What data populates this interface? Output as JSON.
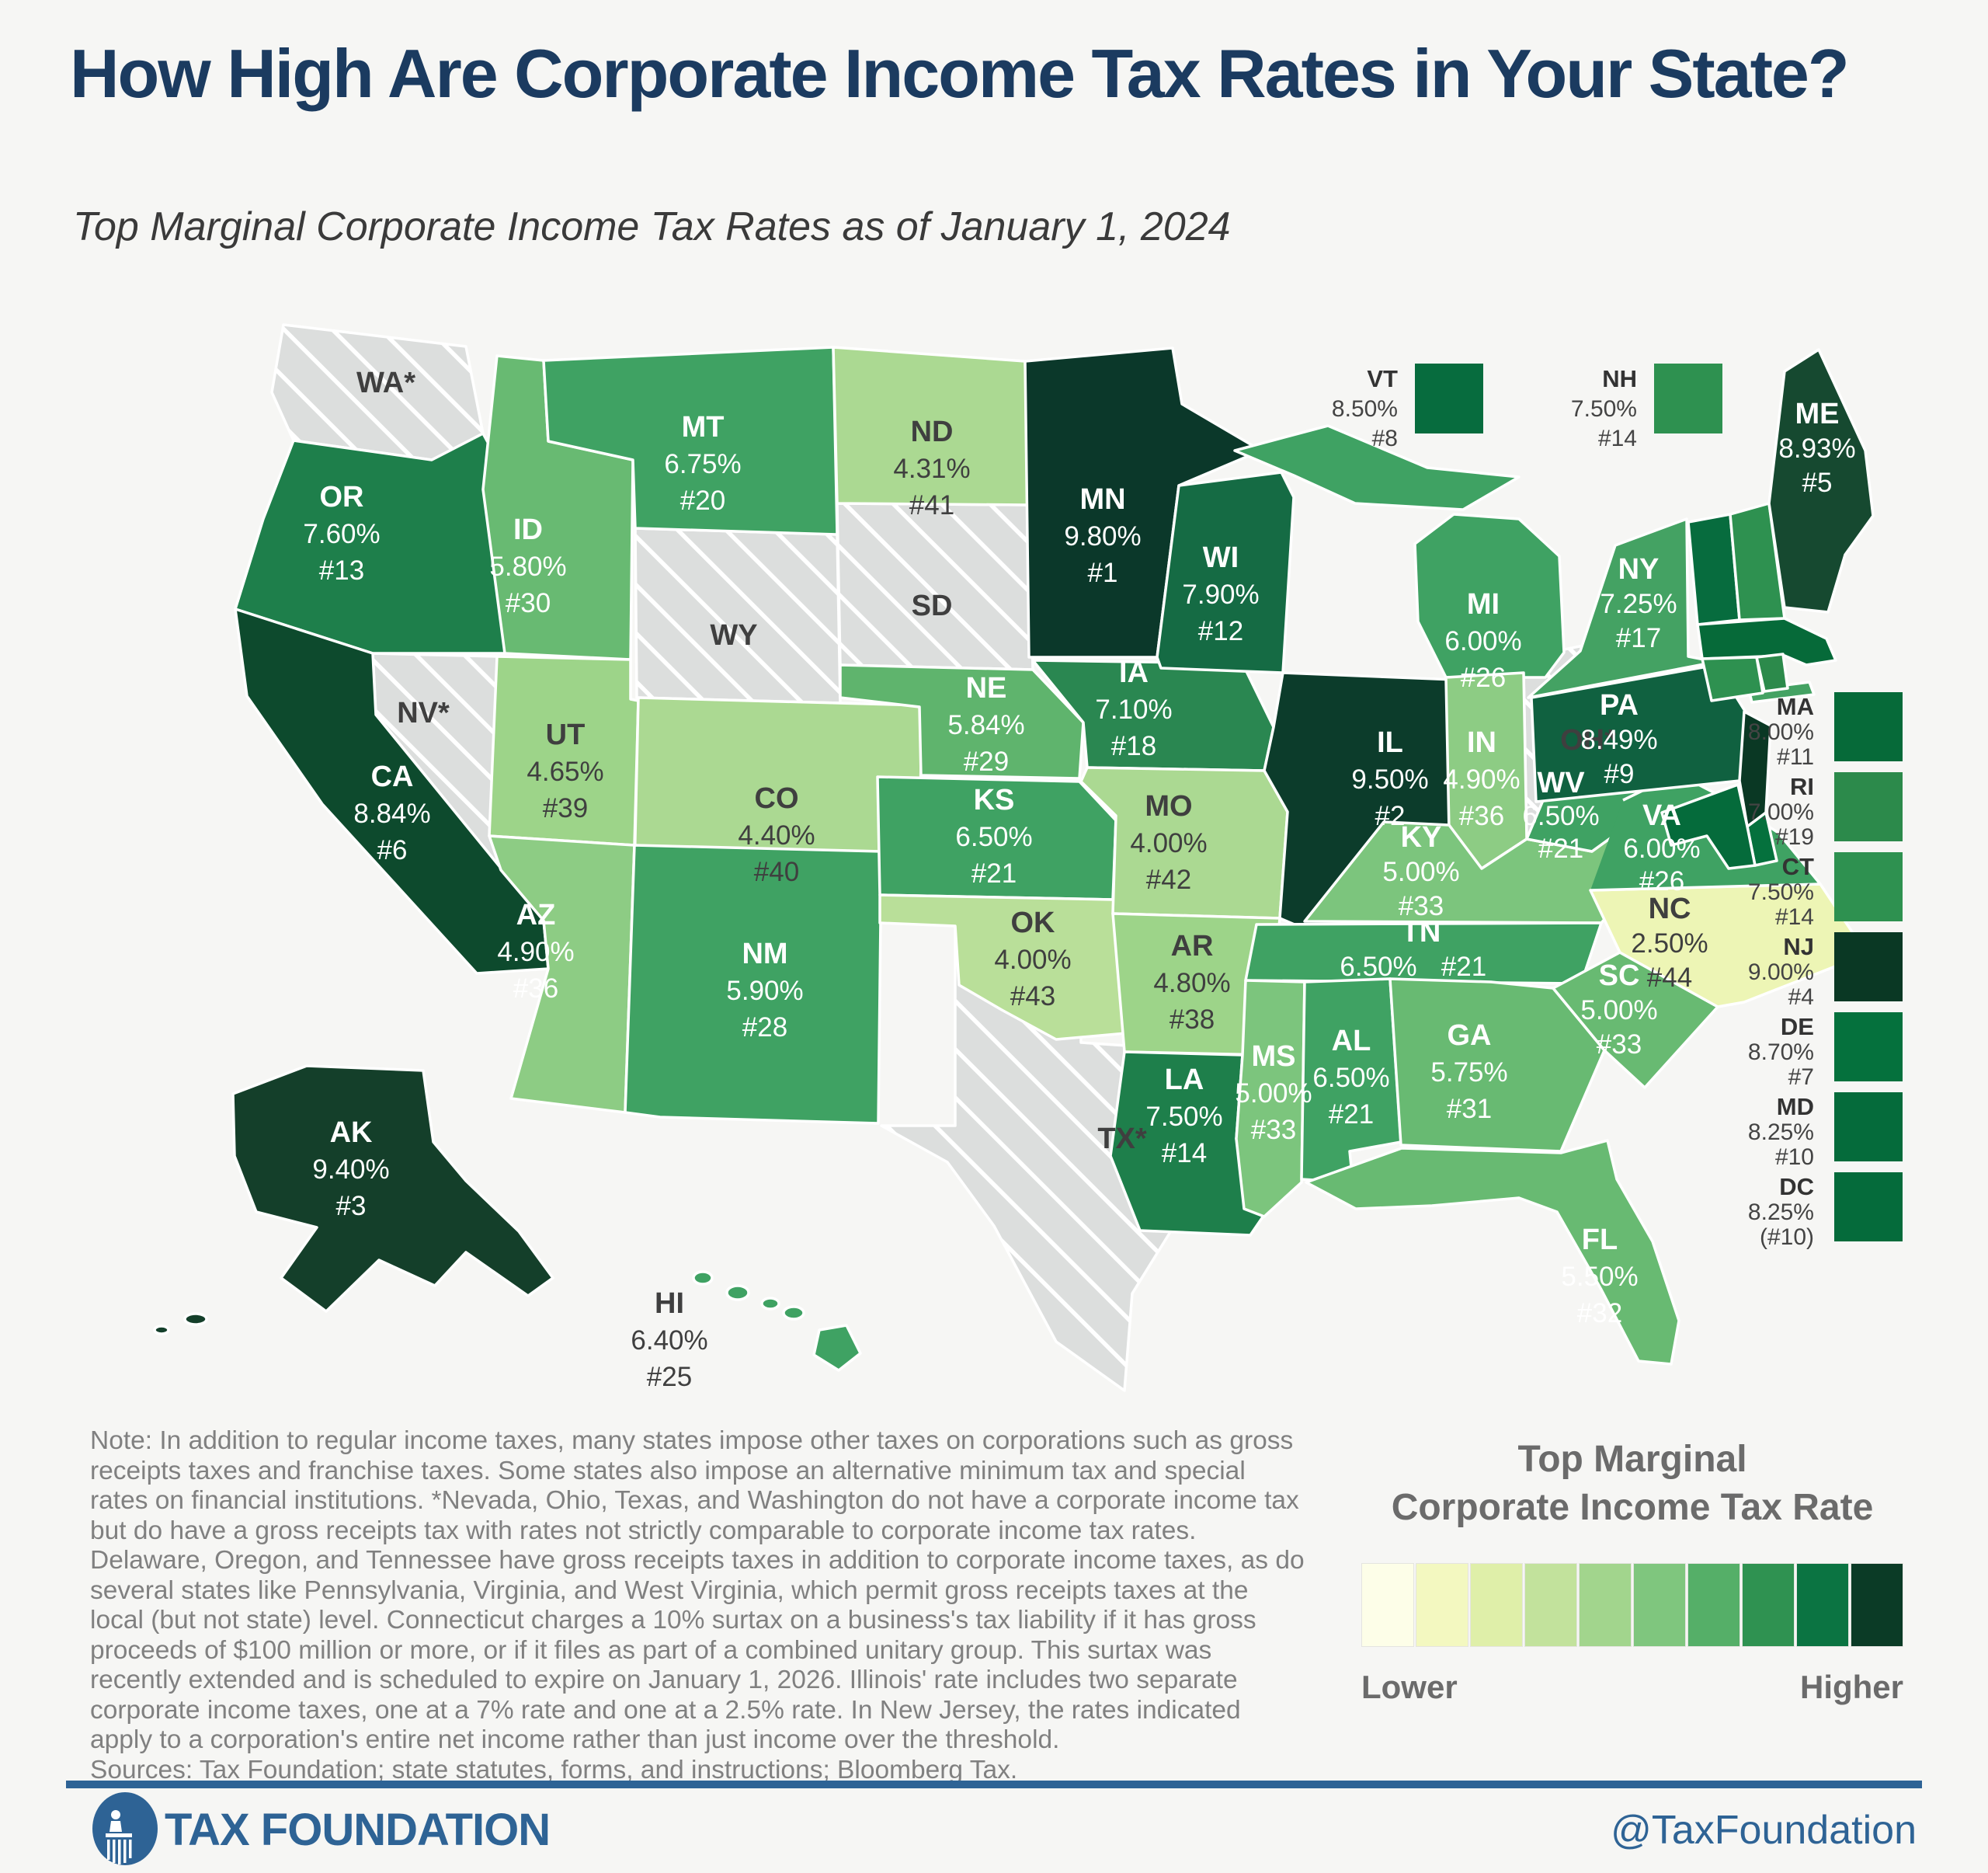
{
  "title": "How High Are Corporate Income Tax Rates in Your State?",
  "subtitle": "Top Marginal Corporate Income Tax Rates as of January 1, 2024",
  "map": {
    "states": {
      "WA": {
        "label": "WA*"
      },
      "NV": {
        "label": "NV*"
      },
      "WY": {
        "label": "WY"
      },
      "SD": {
        "label": "SD"
      },
      "TX": {
        "label": "TX*"
      },
      "OH": {
        "label": "OH*"
      },
      "OR": {
        "abbr": "OR",
        "rate": "7.60%",
        "rank": "#13",
        "color": "#1E7F4B"
      },
      "CA": {
        "abbr": "CA",
        "rate": "8.84%",
        "rank": "#6",
        "color": "#0D4A2D"
      },
      "ID": {
        "abbr": "ID",
        "rate": "5.80%",
        "rank": "#30",
        "color": "#68BA72"
      },
      "MT": {
        "abbr": "MT",
        "rate": "6.75%",
        "rank": "#20",
        "color": "#3FA263"
      },
      "UT": {
        "abbr": "UT",
        "rate": "4.65%",
        "rank": "#39",
        "color": "#9DD489"
      },
      "AZ": {
        "abbr": "AZ",
        "rate": "4.90%",
        "rank": "#36",
        "color": "#8DCC84"
      },
      "NM": {
        "abbr": "NM",
        "rate": "5.90%",
        "rank": "#28",
        "color": "#3FA263"
      },
      "CO": {
        "abbr": "CO",
        "rate": "4.40%",
        "rank": "#40",
        "color": "#ABD992"
      },
      "ND": {
        "abbr": "ND",
        "rate": "4.31%",
        "rank": "#41",
        "color": "#ABD992"
      },
      "NE": {
        "abbr": "NE",
        "rate": "5.84%",
        "rank": "#29",
        "color": "#5FB46D"
      },
      "KS": {
        "abbr": "KS",
        "rate": "6.50%",
        "rank": "#21",
        "color": "#3FA263"
      },
      "OK": {
        "abbr": "OK",
        "rate": "4.00%",
        "rank": "#43",
        "color": "#B9DF99"
      },
      "MN": {
        "abbr": "MN",
        "rate": "9.80%",
        "rank": "#1",
        "color": "#0B382A"
      },
      "IA": {
        "abbr": "IA",
        "rate": "7.10%",
        "rank": "#18",
        "color": "#2A8751"
      },
      "MO": {
        "abbr": "MO",
        "rate": "4.00%",
        "rank": "#42",
        "color": "#ABD992"
      },
      "AR": {
        "abbr": "AR",
        "rate": "4.80%",
        "rank": "#38",
        "color": "#9DD489"
      },
      "LA": {
        "abbr": "LA",
        "rate": "7.50%",
        "rank": "#14",
        "color": "#1E7F4B"
      },
      "WI": {
        "abbr": "WI",
        "rate": "7.90%",
        "rank": "#12",
        "color": "#156B44"
      },
      "IL": {
        "abbr": "IL",
        "rate": "9.50%",
        "rank": "#2",
        "color": "#0C3C2B"
      },
      "MI": {
        "abbr": "MI",
        "rate": "6.00%",
        "rank": "#26",
        "color": "#3FA263"
      },
      "IN": {
        "abbr": "IN",
        "rate": "4.90%",
        "rank": "#36",
        "color": "#8DCC84"
      },
      "KY": {
        "abbr": "KY",
        "rate": "5.00%",
        "rank": "#33",
        "color": "#7CC57D"
      },
      "TN": {
        "abbr": "TN",
        "rate": "6.50%",
        "rank": "#21",
        "color": "#3FA263"
      },
      "MS": {
        "abbr": "MS",
        "rate": "5.00%",
        "rank": "#33",
        "color": "#7CC57D"
      },
      "AL": {
        "abbr": "AL",
        "rate": "6.50%",
        "rank": "#21",
        "color": "#3FA263"
      },
      "GA": {
        "abbr": "GA",
        "rate": "5.75%",
        "rank": "#31",
        "color": "#68BA72"
      },
      "SC": {
        "abbr": "SC",
        "rate": "5.00%",
        "rank": "#33",
        "color": "#68BA72"
      },
      "NC": {
        "abbr": "NC",
        "rate": "2.50%",
        "rank": "#44",
        "color": "#EDF5B5"
      },
      "FL": {
        "abbr": "FL",
        "rate": "5.50%",
        "rank": "#32",
        "color": "#68BA72"
      },
      "VA": {
        "abbr": "VA",
        "rate": "6.00%",
        "rank": "#26",
        "color": "#3FA263"
      },
      "WV": {
        "abbr": "WV",
        "rate": "6.50%",
        "rank": "#21",
        "color": "#3FA263"
      },
      "PA": {
        "abbr": "PA",
        "rate": "8.49%",
        "rank": "#9",
        "color": "#106140"
      },
      "NY": {
        "abbr": "NY",
        "rate": "7.25%",
        "rank": "#17",
        "color": "#44A263"
      },
      "ME": {
        "abbr": "ME",
        "rate": "8.93%",
        "rank": "#5",
        "color": "#164930"
      },
      "HI": {
        "abbr": "HI",
        "rate": "6.40%",
        "rank": "#25",
        "color": "#3FA263"
      },
      "AK": {
        "abbr": "AK",
        "rate": "9.40%",
        "rank": "#3",
        "color": "#143F2A"
      },
      "VT": {
        "abbr": "VT",
        "rate": "8.50%",
        "rank": "#8",
        "color": "#076C3E"
      },
      "NH": {
        "abbr": "NH",
        "rate": "7.50%",
        "rank": "#14",
        "color": "#2E9150"
      },
      "MA": {
        "abbr": "MA",
        "rate": "8.00%",
        "rank": "#11",
        "color": "#066A39"
      },
      "RI": {
        "abbr": "RI",
        "rate": "7.00%",
        "rank": "#19",
        "color": "#2C8A4B"
      },
      "CT": {
        "abbr": "CT",
        "rate": "7.50%",
        "rank": "#14",
        "color": "#2E9150"
      },
      "NJ": {
        "abbr": "NJ",
        "rate": "9.00%",
        "rank": "#4",
        "color": "#0A3824"
      },
      "DE": {
        "abbr": "DE",
        "rate": "8.70%",
        "rank": "#7",
        "color": "#05713D"
      },
      "MD": {
        "abbr": "MD",
        "rate": "8.25%",
        "rank": "#10",
        "color": "#056B3B"
      },
      "DC": {
        "abbr": "DC",
        "rate": "8.25%",
        "rank": "(#10)",
        "color": "#056B3B"
      }
    }
  },
  "legend": {
    "title_line1": "Top Marginal",
    "title_line2": "Corporate Income Tax Rate",
    "lower": "Lower",
    "higher": "Higher",
    "colors": [
      "#FDFEE8",
      "#F3F8C0",
      "#DFEFA9",
      "#C2E29C",
      "#A2D58D",
      "#7FC67E",
      "#55AF68",
      "#2F9251",
      "#0B7442",
      "#0B3B26"
    ]
  },
  "note": {
    "body": "Note: In addition to regular income taxes, many states impose other taxes on corporations such as gross receipts taxes and franchise taxes. Some states also impose an alternative minimum tax and special rates on financial institutions. *Nevada, Ohio, Texas, and Washington do not have a corporate income tax but do have a gross receipts tax with rates not strictly comparable to corporate income tax rates. Delaware, Oregon, and Tennessee have gross receipts taxes in addition to corporate income taxes, as do several states like Pennsylvania, Virginia, and West Virginia, which permit gross receipts taxes at the local (but not state) level. Connecticut charges a 10% surtax on a business's tax liability if it has gross proceeds of $100 million or more, or if it files as part of a combined unitary group. This surtax was recently extended and is scheduled to expire on January 1, 2026. Illinois' rate includes two separate corporate income taxes, one at a 7% rate and one at a 2.5% rate. In New Jersey, the rates indicated apply to a corporation's entire net income rather than just income over the threshold.",
    "sources": "Sources: Tax Foundation; state statutes, forms, and instructions; Bloomberg Tax."
  },
  "footer": {
    "brand": "TAX FOUNDATION",
    "handle": "@TaxFoundation"
  },
  "chart_data": {
    "type": "heatmap",
    "subtype": "us-state-choropleth",
    "title": "How High Are Corporate Income Tax Rates in Your State?",
    "subtitle": "Top Marginal Corporate Income Tax Rates as of January 1, 2024",
    "unit": "percent",
    "legend": {
      "label": "Top Marginal Corporate Income Tax Rate",
      "scale": "Lower to Higher",
      "position": "bottom-right"
    },
    "points": [
      {
        "state": "MN",
        "rate": 9.8,
        "rank": 1
      },
      {
        "state": "IL",
        "rate": 9.5,
        "rank": 2
      },
      {
        "state": "AK",
        "rate": 9.4,
        "rank": 3
      },
      {
        "state": "NJ",
        "rate": 9.0,
        "rank": 4
      },
      {
        "state": "ME",
        "rate": 8.93,
        "rank": 5
      },
      {
        "state": "CA",
        "rate": 8.84,
        "rank": 6
      },
      {
        "state": "DE",
        "rate": 8.7,
        "rank": 7
      },
      {
        "state": "VT",
        "rate": 8.5,
        "rank": 8
      },
      {
        "state": "PA",
        "rate": 8.49,
        "rank": 9
      },
      {
        "state": "MD",
        "rate": 8.25,
        "rank": 10
      },
      {
        "state": "DC",
        "rate": 8.25,
        "rank": 10
      },
      {
        "state": "MA",
        "rate": 8.0,
        "rank": 11
      },
      {
        "state": "WI",
        "rate": 7.9,
        "rank": 12
      },
      {
        "state": "OR",
        "rate": 7.6,
        "rank": 13
      },
      {
        "state": "CT",
        "rate": 7.5,
        "rank": 14
      },
      {
        "state": "LA",
        "rate": 7.5,
        "rank": 14
      },
      {
        "state": "NH",
        "rate": 7.5,
        "rank": 14
      },
      {
        "state": "NY",
        "rate": 7.25,
        "rank": 17
      },
      {
        "state": "IA",
        "rate": 7.1,
        "rank": 18
      },
      {
        "state": "RI",
        "rate": 7.0,
        "rank": 19
      },
      {
        "state": "MT",
        "rate": 6.75,
        "rank": 20
      },
      {
        "state": "AL",
        "rate": 6.5,
        "rank": 21
      },
      {
        "state": "KS",
        "rate": 6.5,
        "rank": 21
      },
      {
        "state": "TN",
        "rate": 6.5,
        "rank": 21
      },
      {
        "state": "WV",
        "rate": 6.5,
        "rank": 21
      },
      {
        "state": "HI",
        "rate": 6.4,
        "rank": 25
      },
      {
        "state": "MI",
        "rate": 6.0,
        "rank": 26
      },
      {
        "state": "VA",
        "rate": 6.0,
        "rank": 26
      },
      {
        "state": "NM",
        "rate": 5.9,
        "rank": 28
      },
      {
        "state": "NE",
        "rate": 5.84,
        "rank": 29
      },
      {
        "state": "ID",
        "rate": 5.8,
        "rank": 30
      },
      {
        "state": "GA",
        "rate": 5.75,
        "rank": 31
      },
      {
        "state": "FL",
        "rate": 5.5,
        "rank": 32
      },
      {
        "state": "KY",
        "rate": 5.0,
        "rank": 33
      },
      {
        "state": "MS",
        "rate": 5.0,
        "rank": 33
      },
      {
        "state": "SC",
        "rate": 5.0,
        "rank": 33
      },
      {
        "state": "AZ",
        "rate": 4.9,
        "rank": 36
      },
      {
        "state": "IN",
        "rate": 4.9,
        "rank": 36
      },
      {
        "state": "AR",
        "rate": 4.8,
        "rank": 38
      },
      {
        "state": "UT",
        "rate": 4.65,
        "rank": 39
      },
      {
        "state": "CO",
        "rate": 4.4,
        "rank": 40
      },
      {
        "state": "ND",
        "rate": 4.31,
        "rank": 41
      },
      {
        "state": "MO",
        "rate": 4.0,
        "rank": 42
      },
      {
        "state": "OK",
        "rate": 4.0,
        "rank": 43
      },
      {
        "state": "NC",
        "rate": 2.5,
        "rank": 44
      }
    ],
    "no_corporate_income_tax_shown_as_gray": [
      "WA*",
      "NV*",
      "WY",
      "SD",
      "TX*",
      "OH*"
    ]
  }
}
